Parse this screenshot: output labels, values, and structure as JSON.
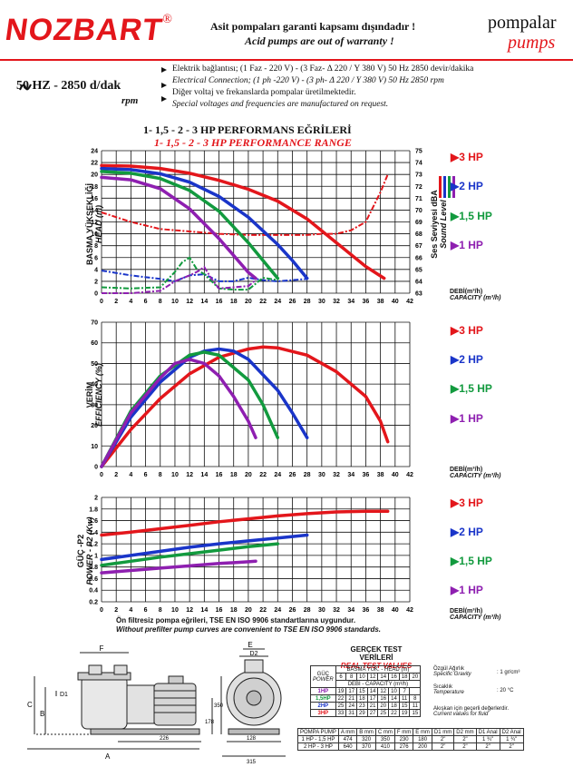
{
  "header": {
    "logo": "NOZBART",
    "logo_reg": "®",
    "warranty_tr": "Asit pompaları garanti kapsamı dışındadır !",
    "warranty_en": "Acid pumps are out of warranty !",
    "brand_tr": "pompalar",
    "brand_en": "pumps"
  },
  "spec": {
    "frequency": "50 HZ - 2850 d/dak",
    "rpm": "rpm",
    "line1": "Elektrik bağlantısı; (1 Faz - 220 V) - (3 Faz- Δ 220 / Y 380 V) 50 Hz 2850 devir/dakika",
    "line2": "Electrical Connection; (1 ph -220 V) - (3 ph- Δ 220 / Y 380 V) 50 Hz 2850 rpm",
    "line3": "Diğer voltaj ve frekanslarda pompalar üretilmektedir.",
    "line4": "Special voltages and frequencies are manufactured on request."
  },
  "section": {
    "title_tr": "1- 1,5 - 2 - 3 HP PERFORMANS EĞRİLERİ",
    "title_en": "1- 1,5 - 2 - 3 HP PERFORMANCE RANGE"
  },
  "colors": {
    "hp3": "#e3161b",
    "hp2": "#1a35c9",
    "hp15": "#129a3e",
    "hp1": "#8e1fb0"
  },
  "legend": {
    "hp3": "3 HP",
    "hp2": "2 HP",
    "hp15": "1,5 HP",
    "hp1": "1 HP",
    "marker": "▶"
  },
  "axis_text": {
    "debi_tr": "DEBİ(m³/h)",
    "capacity_en": "CAPACITY (m³/h)"
  },
  "chart_data": [
    {
      "type": "line",
      "ylabel_tr": "BASMA YÜKSEKLİĞİ",
      "ylabel_en": "HEAD (m)",
      "y2label_tr": "Ses Seviyesi dBA",
      "y2label_en": "Sound Level",
      "xlim": [
        0,
        42
      ],
      "ylim": [
        0,
        24
      ],
      "y2lim": [
        63,
        75
      ],
      "x_ticks": [
        0,
        2,
        4,
        6,
        8,
        10,
        12,
        14,
        16,
        18,
        20,
        22,
        24,
        26,
        28,
        30,
        32,
        34,
        36,
        38,
        40,
        42
      ],
      "y_ticks": [
        0,
        2,
        4,
        6,
        8,
        10,
        12,
        14,
        16,
        18,
        20,
        22,
        24
      ],
      "y2_ticks": [
        63,
        64,
        65,
        66,
        67,
        68,
        69,
        70,
        71,
        72,
        73,
        74,
        75
      ],
      "series": [
        {
          "name": "3 HP",
          "x": [
            0,
            4,
            8,
            12,
            16,
            20,
            24,
            28,
            32,
            36,
            38.5
          ],
          "y": [
            21.5,
            21.4,
            21,
            20.2,
            19,
            17.5,
            15.5,
            12.5,
            8.5,
            4.5,
            2.5
          ]
        },
        {
          "name": "2 HP",
          "x": [
            0,
            4,
            8,
            12,
            16,
            20,
            24,
            26,
            28
          ],
          "y": [
            21,
            20.8,
            20.1,
            18.7,
            16.3,
            12.8,
            8.2,
            5.5,
            2.5
          ]
        },
        {
          "name": "1,5 HP",
          "x": [
            0,
            4,
            8,
            12,
            16,
            20,
            22,
            24
          ],
          "y": [
            20.5,
            20.2,
            19.3,
            17.3,
            13.8,
            8.5,
            5.5,
            2.5
          ]
        },
        {
          "name": "1 HP",
          "x": [
            0,
            4,
            8,
            12,
            16,
            20,
            21
          ],
          "y": [
            19.5,
            19.1,
            17.6,
            14.2,
            9.2,
            3.5,
            2.5
          ]
        }
      ],
      "sound_series": [
        {
          "name": "3 HP",
          "x": [
            0,
            4,
            8,
            12,
            16,
            20,
            24,
            28,
            30,
            32,
            34,
            36,
            38,
            39
          ],
          "y": [
            69.8,
            69,
            68.4,
            68.2,
            68,
            67.9,
            67.9,
            67.9,
            68,
            68,
            68.3,
            69,
            71.5,
            73
          ]
        },
        {
          "name": "2 HP",
          "x": [
            0,
            4,
            8,
            10,
            12,
            14,
            16,
            18,
            20,
            22,
            24,
            26,
            28
          ],
          "y": [
            64.9,
            64.5,
            64.2,
            64,
            64.5,
            64.6,
            64,
            64,
            64.3,
            64.1,
            64,
            64.1,
            64.2
          ]
        },
        {
          "name": "1,5 HP",
          "x": [
            0,
            4,
            8,
            10,
            11,
            12,
            13,
            14,
            15,
            16,
            18,
            20,
            22,
            24
          ],
          "y": [
            63.5,
            63.4,
            63.5,
            64.8,
            65.6,
            66,
            65,
            64.6,
            64,
            63.4,
            63.3,
            63.3,
            64.3,
            64.1
          ]
        },
        {
          "name": "1 HP",
          "x": [
            0,
            4,
            8,
            10,
            12,
            13,
            14,
            15,
            16,
            18,
            20,
            21
          ],
          "y": [
            63,
            63,
            63.2,
            64,
            64.5,
            64.8,
            65.2,
            64.2,
            63.4,
            63.5,
            63.6,
            64.1
          ]
        }
      ]
    },
    {
      "type": "line",
      "ylabel_tr": "VERİM",
      "ylabel_en": "EFFICIENCY (%)",
      "xlim": [
        0,
        42
      ],
      "ylim": [
        0,
        70
      ],
      "x_ticks": [
        0,
        2,
        4,
        6,
        8,
        10,
        12,
        14,
        16,
        18,
        20,
        22,
        24,
        26,
        28,
        30,
        32,
        34,
        36,
        38,
        40,
        42
      ],
      "y_ticks": [
        0,
        10,
        20,
        30,
        40,
        50,
        60,
        70
      ],
      "series": [
        {
          "name": "3 HP",
          "x": [
            0,
            4,
            8,
            12,
            16,
            20,
            22,
            24,
            28,
            32,
            36,
            38,
            39
          ],
          "y": [
            0,
            18,
            33,
            45,
            53,
            57,
            58,
            57.6,
            54,
            46,
            34,
            22,
            12
          ]
        },
        {
          "name": "2 HP",
          "x": [
            0,
            4,
            8,
            12,
            14,
            16,
            18,
            20,
            24,
            26,
            28
          ],
          "y": [
            0,
            24,
            41,
            53,
            56,
            57,
            56,
            52,
            37,
            26,
            14
          ]
        },
        {
          "name": "1,5 HP",
          "x": [
            0,
            4,
            8,
            12,
            14,
            16,
            20,
            22,
            24
          ],
          "y": [
            0,
            27,
            44,
            54,
            55.5,
            54,
            42,
            30,
            14
          ]
        },
        {
          "name": "1 HP",
          "x": [
            0,
            4,
            8,
            10,
            12,
            14,
            16,
            18,
            20,
            21
          ],
          "y": [
            0,
            26,
            43,
            50,
            52,
            50,
            44,
            34,
            22,
            14
          ]
        }
      ]
    },
    {
      "type": "line",
      "ylabel_tr": "GÜÇ -P2",
      "ylabel_en": "POWER - P2 (Kw)",
      "xlim": [
        0,
        42
      ],
      "ylim": [
        0.2,
        2
      ],
      "x_ticks": [
        0,
        2,
        4,
        6,
        8,
        10,
        12,
        14,
        16,
        18,
        20,
        22,
        24,
        26,
        28,
        30,
        32,
        34,
        36,
        38,
        40,
        42
      ],
      "y_ticks": [
        0.2,
        0.4,
        0.6,
        0.8,
        1,
        1.2,
        1.4,
        1.6,
        1.8,
        2
      ],
      "series": [
        {
          "name": "3 HP",
          "x": [
            0,
            4,
            8,
            12,
            16,
            20,
            24,
            28,
            32,
            36,
            39
          ],
          "y": [
            1.35,
            1.4,
            1.46,
            1.52,
            1.58,
            1.63,
            1.68,
            1.72,
            1.75,
            1.76,
            1.76
          ]
        },
        {
          "name": "2 HP",
          "x": [
            0,
            4,
            8,
            12,
            16,
            20,
            24,
            28
          ],
          "y": [
            0.93,
            1,
            1.07,
            1.14,
            1.2,
            1.25,
            1.3,
            1.35
          ]
        },
        {
          "name": "1,5 HP",
          "x": [
            0,
            4,
            8,
            12,
            16,
            20,
            24
          ],
          "y": [
            0.83,
            0.9,
            0.97,
            1.03,
            1.09,
            1.15,
            1.2
          ]
        },
        {
          "name": "1 HP",
          "x": [
            0,
            4,
            8,
            12,
            16,
            20,
            21
          ],
          "y": [
            0.7,
            0.74,
            0.78,
            0.82,
            0.86,
            0.89,
            0.9
          ]
        }
      ]
    }
  ],
  "notes": {
    "filter_tr": "Ön filtresiz pompa eğrileri, TSE EN ISO 9906 standartlarına uygundur.",
    "filter_en": "Without prefilter pump curves are convenient to TSE EN ISO 9906 standards."
  },
  "test": {
    "title_tr": "GERÇEK TEST VERİLERİ",
    "title_en": "REAL TEST VALUES",
    "power_tr": "GÜÇ",
    "power_en": "POWER",
    "head_hdr": "BASMA YÜK. - HEAD (m)",
    "head_values": [
      "6",
      "8",
      "10",
      "12",
      "14",
      "16",
      "18",
      "20"
    ],
    "cap_hdr": "DEBİ - CAPACITY (m³/h)",
    "rows": [
      {
        "power": "1HP",
        "values": [
          "19",
          "17",
          "15",
          "14",
          "12",
          "10",
          "7",
          ""
        ]
      },
      {
        "power": "1,5HP",
        "values": [
          "22",
          "21",
          "18",
          "17",
          "16",
          "14",
          "11",
          "8"
        ]
      },
      {
        "power": "2HP",
        "values": [
          "25",
          "24",
          "23",
          "21",
          "20",
          "18",
          "15",
          "11"
        ]
      },
      {
        "power": "3HP",
        "values": [
          "33",
          "31",
          "29",
          "27",
          "25",
          "22",
          "19",
          "15"
        ]
      }
    ],
    "gravity_tr": "Özgül Ağırlık",
    "gravity_en": "Specific Gravity",
    "gravity_val": ": 1 gr/cm³",
    "temp_tr": "Sıcaklık",
    "temp_en": "Temperature",
    "temp_val": ": 20 °C",
    "fluid_tr": "Akışkan için geçerli değerlerdir.",
    "fluid_en": "Current values for fluid"
  },
  "dims": {
    "headers": [
      "POMPA PUMP",
      "A mm",
      "B mm",
      "C mm",
      "F mm",
      "E mm",
      "D1 mm",
      "D2 mm",
      "D1 Anal",
      "D2 Anal"
    ],
    "rows": [
      [
        "1 HP - 1,5 HP",
        "474",
        "320",
        "350",
        "230",
        "180",
        "2\"",
        "2\"",
        "1 ¾\"",
        "1 ¾\""
      ],
      [
        "2 HP - 3 HP",
        "640",
        "370",
        "410",
        "276",
        "200",
        "2\"",
        "2\"",
        "2\"",
        "2\""
      ]
    ],
    "labels": {
      "F": "F",
      "E": "E",
      "D2": "D2",
      "D1": "D1",
      "B": "B",
      "C": "C",
      "A": "A",
      "d350": "350",
      "d178": "178",
      "d226": "226",
      "d128": "128",
      "d315": "315"
    }
  }
}
